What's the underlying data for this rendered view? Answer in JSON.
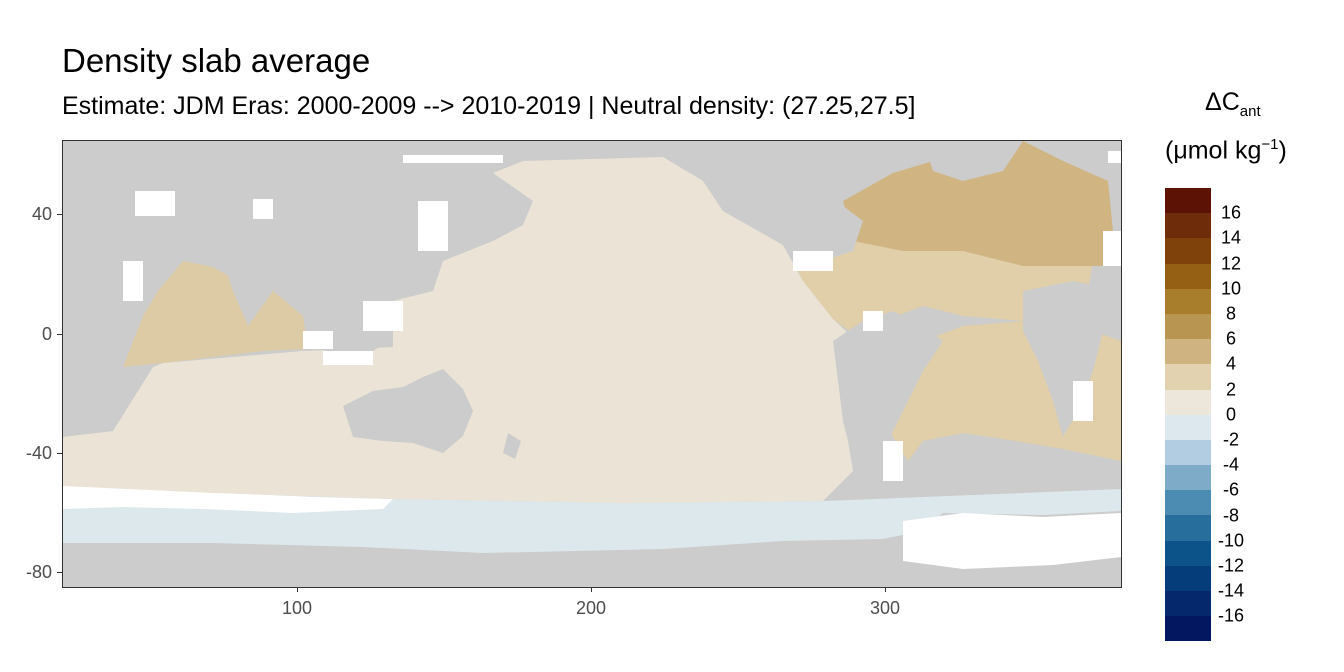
{
  "title": "Density slab average",
  "subtitle": "Estimate: JDM Eras: 2000-2009 --> 2010-2019 | Neutral density: (27.25,27.5]",
  "map": {
    "x_ticks": [
      "100",
      "200",
      "300"
    ],
    "y_ticks": [
      "40",
      "0",
      "-40",
      "-80"
    ],
    "lon_range": [
      20,
      380
    ],
    "lat_range": [
      -85,
      65
    ],
    "region_values_umol_kg": {
      "north_atlantic_subpolar": 5,
      "north_atlantic_subtropical": 3.5,
      "south_atlantic": 3,
      "indian_ocean_north": 3,
      "pacific_and_south_indian": 1,
      "southern_ocean_band": -1
    },
    "colors": {
      "land": "#cccccc",
      "no_data": "#ffffff",
      "pacific": "#ebe4d6",
      "atlantic_north": "#d8c293",
      "atlantic_south": "#e0cfa8",
      "indian_north": "#dccba4",
      "southern_ocean": "#dde8ec"
    }
  },
  "legend": {
    "title_main": "ΔC",
    "title_sub": "ant",
    "unit_main": "(μmol kg",
    "unit_sup": "−1",
    "unit_close": ")",
    "labels": [
      "16",
      "14",
      "12",
      "10",
      "8",
      "6",
      "4",
      "2",
      "0",
      "-2",
      "-4",
      "-6",
      "-8",
      "-10",
      "-12",
      "-14",
      "-16"
    ],
    "colors": [
      "#5c1305",
      "#6e2c0a",
      "#80420b",
      "#955f14",
      "#a87d2b",
      "#b89652",
      "#cfb380",
      "#e2d2b0",
      "#ede7db",
      "#dde8ee",
      "#b2cde1",
      "#7eacc8",
      "#4c8cb3",
      "#276e9d",
      "#0b5389",
      "#053d7a",
      "#04286b",
      "#021760"
    ]
  }
}
